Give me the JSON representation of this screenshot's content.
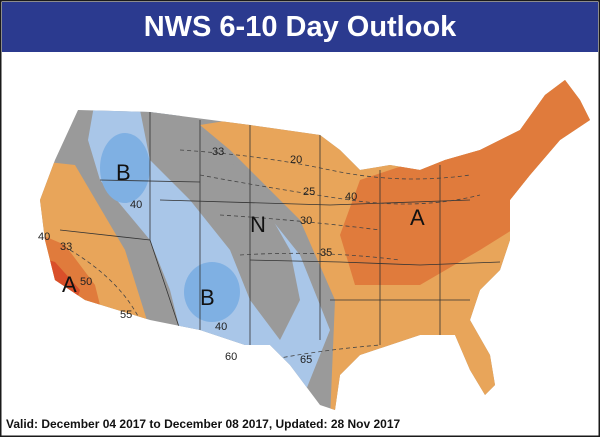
{
  "header": {
    "title": "NWS 6-10 Day Outlook"
  },
  "map": {
    "labels": [
      "B",
      "B",
      "N",
      "A",
      "A",
      "33",
      "20",
      "25",
      "30",
      "40",
      "35",
      "40",
      "33",
      "40",
      "50",
      "55",
      "60",
      "65",
      "40"
    ]
  },
  "footer": {
    "text": "Valid: December 04 2017 to December 08 2017, Updated: 28 Nov 2017"
  }
}
